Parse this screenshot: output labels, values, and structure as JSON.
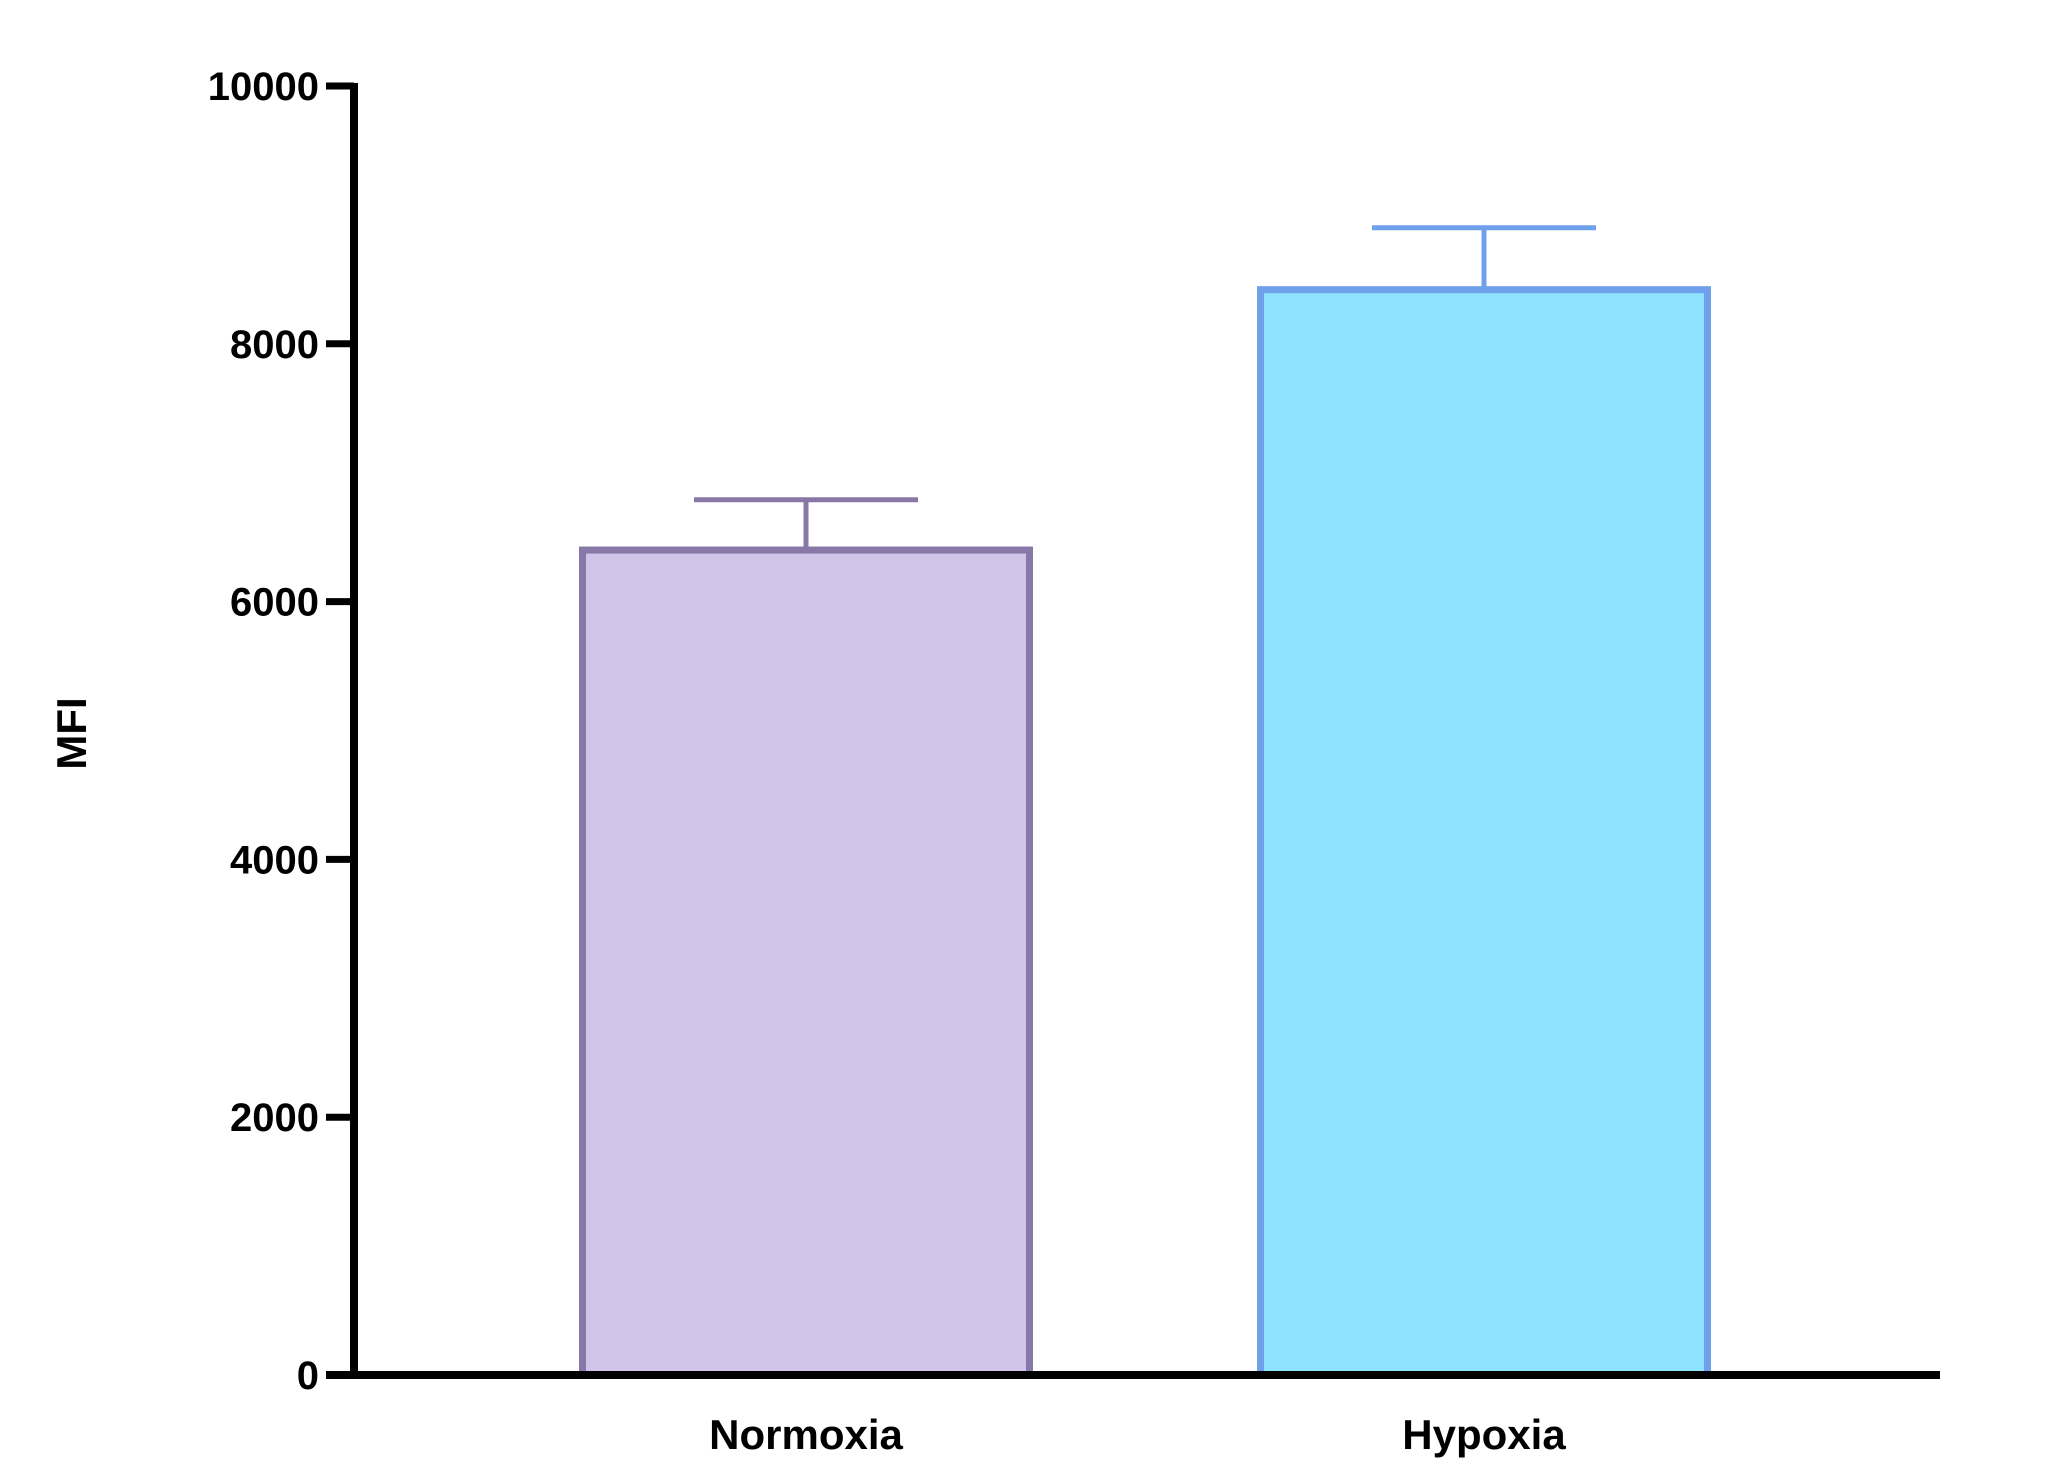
{
  "chart_data": {
    "type": "bar",
    "title": "",
    "xlabel": "",
    "ylabel": "MFI",
    "ylim": [
      0,
      10000
    ],
    "yticks": [
      0,
      2000,
      4000,
      6000,
      8000,
      10000
    ],
    "ytick_labels": [
      "0",
      "2000",
      "4000",
      "6000",
      "8000",
      "10000"
    ],
    "categories": [
      "Normoxia",
      "Hypoxia"
    ],
    "values": [
      6400,
      8420
    ],
    "error_upper": [
      6790,
      8900
    ],
    "grid": false,
    "legend": "none",
    "colors": {
      "fill": [
        "#d0c4e8",
        "#8ee2fd"
      ],
      "border": [
        "#8878a8",
        "#6fa0ec"
      ],
      "axis": "#000000"
    }
  }
}
